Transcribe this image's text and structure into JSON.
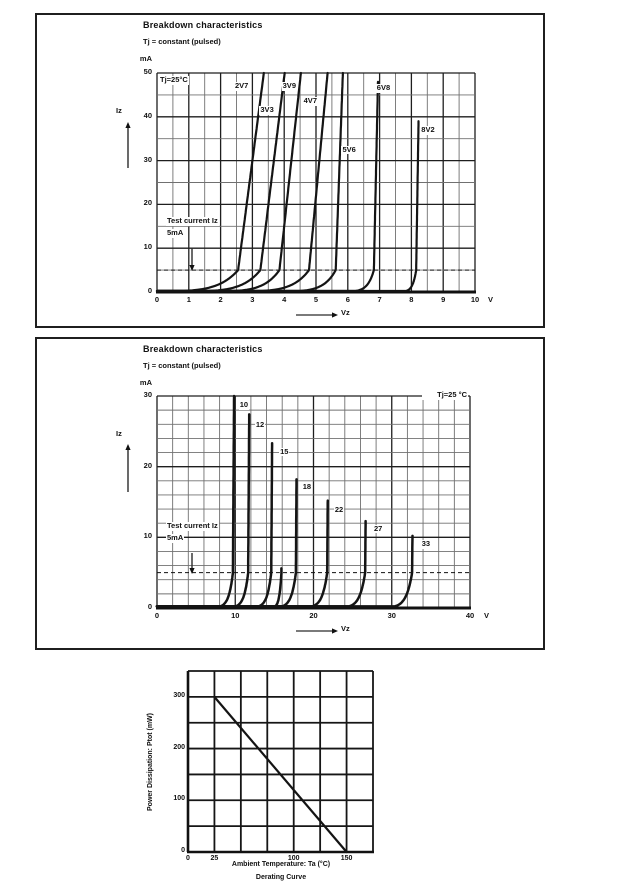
{
  "chart_data": [
    {
      "type": "line",
      "title": "Breakdown characteristics",
      "subtitle": "Tj = constant (pulsed)",
      "corner_annotation": "Tj=25°C",
      "xlabel": "Vz",
      "ylabel": "Iz",
      "x_unit": "V",
      "y_unit": "mA",
      "xlim": [
        0,
        10
      ],
      "ylim": [
        0,
        50
      ],
      "x_minor_step": 0.5,
      "x_major_step": 1,
      "y_minor_step": 5,
      "y_major_step": 10,
      "x_ticks": [
        0,
        1,
        2,
        3,
        4,
        5,
        6,
        7,
        8,
        9,
        10
      ],
      "y_ticks": [
        0,
        10,
        20,
        30,
        40,
        50
      ],
      "test_current": {
        "line1": "Test current Iz",
        "line2": "5mA",
        "level_mA": 5
      },
      "series": [
        {
          "name": "2V7",
          "v_at_5mA": 2.55,
          "v_slope": 0.018,
          "knee_spread": 0.52,
          "top_mA": 50,
          "label_v": 2.42,
          "label_i": 47
        },
        {
          "name": "3V3",
          "v_at_5mA": 3.25,
          "v_slope": 0.017,
          "knee_spread": 0.48,
          "top_mA": 50,
          "label_v": 3.22,
          "label_i": 41.5
        },
        {
          "name": "3V9",
          "v_at_5mA": 3.85,
          "v_slope": 0.015,
          "knee_spread": 0.42,
          "top_mA": 50,
          "label_v": 3.92,
          "label_i": 47
        },
        {
          "name": "4V7",
          "v_at_5mA": 4.78,
          "v_slope": 0.013,
          "knee_spread": 0.45,
          "top_mA": 50,
          "label_v": 4.58,
          "label_i": 43.5
        },
        {
          "name": "5V6",
          "v_at_5mA": 5.62,
          "v_slope": 0.005,
          "knee_spread": 0.35,
          "top_mA": 50,
          "label_v": 5.8,
          "label_i": 32.5
        },
        {
          "name": "6V8",
          "v_at_5mA": 6.82,
          "v_slope": 0.003,
          "knee_spread": 0.18,
          "top_mA": 48,
          "label_v": 6.88,
          "label_i": 46.5
        },
        {
          "name": "8V2",
          "v_at_5mA": 8.15,
          "v_slope": 0.0022,
          "knee_spread": 0.1,
          "top_mA": 39,
          "label_v": 8.28,
          "label_i": 37
        }
      ]
    },
    {
      "type": "line",
      "title": "Breakdown characteristics",
      "subtitle": "Tj = constant (pulsed)",
      "corner_annotation": "Tj=25 °C",
      "xlabel": "Vz",
      "ylabel": "Iz",
      "x_unit": "V",
      "y_unit": "mA",
      "xlim": [
        0,
        40
      ],
      "ylim": [
        0,
        30
      ],
      "x_minor_step": 2,
      "x_major_step": 10,
      "y_minor_step": 2,
      "y_major_step": 10,
      "x_ticks": [
        0,
        10,
        20,
        30,
        40
      ],
      "y_ticks": [
        0,
        10,
        20,
        30
      ],
      "test_current": {
        "line1": "Test current Iz",
        "line2": "5mA",
        "level_mA": 5
      },
      "series": [
        {
          "name": "10",
          "v_at_5mA": 9.7,
          "v_slope": 0.006,
          "knee_spread": 0.5,
          "top_mA": 30,
          "label_v": 10.45,
          "label_i": 28.7
        },
        {
          "name": "12",
          "v_at_5mA": 11.65,
          "v_slope": 0.006,
          "knee_spread": 0.5,
          "top_mA": 27.4,
          "label_v": 12.5,
          "label_i": 25.9
        },
        {
          "name": "15",
          "v_at_5mA": 14.6,
          "v_slope": 0.006,
          "knee_spread": 0.5,
          "top_mA": 23.3,
          "label_v": 15.6,
          "label_i": 22.1
        },
        {
          "name": "",
          "v_at_5mA": 15.9,
          "v_slope": 0.004,
          "knee_spread": 0.25,
          "top_mA": 5.6,
          "label_v": 0,
          "label_i": 0
        },
        {
          "name": "18",
          "v_at_5mA": 17.75,
          "v_slope": 0.006,
          "knee_spread": 0.55,
          "top_mA": 18.2,
          "label_v": 18.5,
          "label_i": 17.1
        },
        {
          "name": "22",
          "v_at_5mA": 21.75,
          "v_slope": 0.007,
          "knee_spread": 0.6,
          "top_mA": 15.2,
          "label_v": 22.6,
          "label_i": 13.9
        },
        {
          "name": "27",
          "v_at_5mA": 26.6,
          "v_slope": 0.008,
          "knee_spread": 0.65,
          "top_mA": 12.3,
          "label_v": 27.6,
          "label_i": 11.2
        },
        {
          "name": "33",
          "v_at_5mA": 32.6,
          "v_slope": 0.009,
          "knee_spread": 0.7,
          "top_mA": 10.2,
          "label_v": 33.7,
          "label_i": 9.0
        }
      ]
    },
    {
      "type": "line",
      "caption": "Derating Curve",
      "xlabel": "Ambient Temperature: Ta (°C)",
      "ylabel": "Power Dissipation: Ptot (mW)",
      "xlim": [
        0,
        175
      ],
      "ylim": [
        0,
        350
      ],
      "x_grid_step": 25,
      "y_grid_step": 50,
      "x_ticks": [
        0,
        25,
        100,
        150
      ],
      "y_ticks": [
        0,
        100,
        200,
        300
      ],
      "line_points": [
        [
          25,
          300
        ],
        [
          150,
          0
        ]
      ]
    }
  ]
}
